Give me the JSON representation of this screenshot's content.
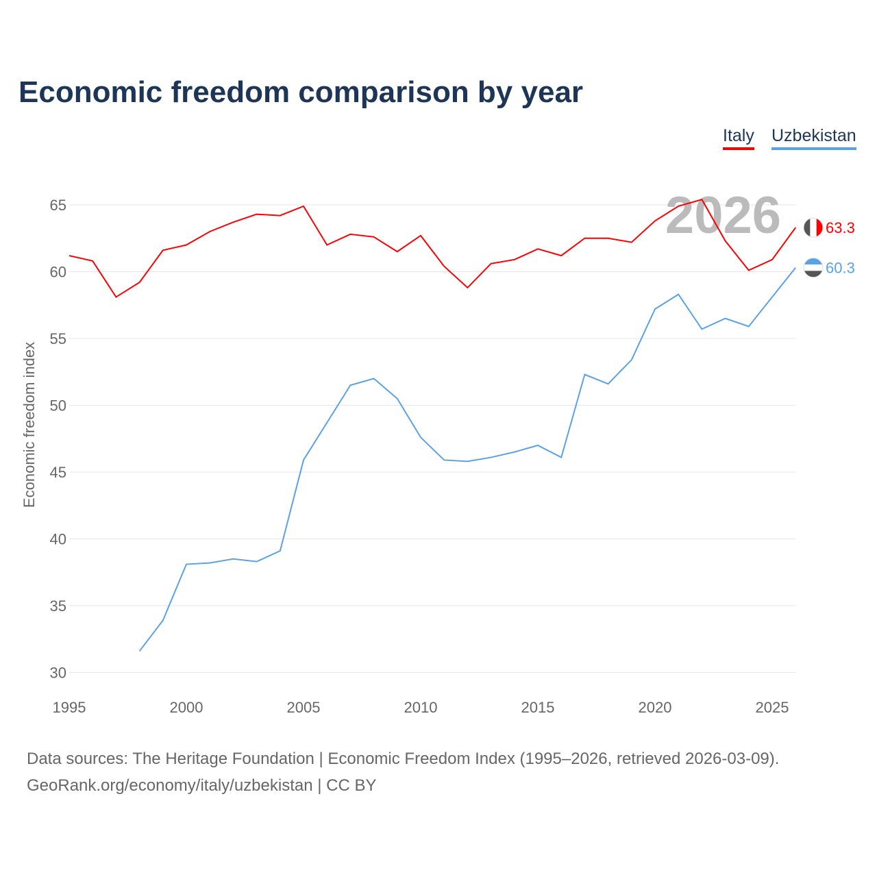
{
  "chart_data": {
    "type": "line",
    "title": "Economic freedom comparison by year",
    "xlabel": "",
    "ylabel": "Economic freedom index",
    "xlim": [
      1995,
      2026
    ],
    "ylim": [
      30,
      66
    ],
    "yticks": [
      30,
      35,
      40,
      45,
      50,
      55,
      60,
      65
    ],
    "xticks": [
      1995,
      2000,
      2005,
      2010,
      2015,
      2020,
      2025
    ],
    "grid": true,
    "legend_position": "top-right",
    "year_watermark": "2026",
    "series": [
      {
        "name": "Italy",
        "color": "#ff0000",
        "end_label": "63.3",
        "x": [
          1995,
          1996,
          1997,
          1998,
          1999,
          2000,
          2001,
          2002,
          2003,
          2004,
          2005,
          2006,
          2007,
          2008,
          2009,
          2010,
          2011,
          2012,
          2013,
          2014,
          2015,
          2016,
          2017,
          2018,
          2019,
          2020,
          2021,
          2022,
          2023,
          2024,
          2025,
          2026
        ],
        "values": [
          61.2,
          60.8,
          58.1,
          59.2,
          61.6,
          62.0,
          63.0,
          63.7,
          64.3,
          64.2,
          64.9,
          62.0,
          62.8,
          62.6,
          61.5,
          62.7,
          60.4,
          58.8,
          60.6,
          60.9,
          61.7,
          61.2,
          62.5,
          62.5,
          62.2,
          63.8,
          64.9,
          65.4,
          62.3,
          60.1,
          60.9,
          63.3
        ]
      },
      {
        "name": "Uzbekistan",
        "color": "#5aa2e8",
        "end_label": "60.3",
        "x": [
          1998,
          1999,
          2000,
          2001,
          2002,
          2003,
          2004,
          2005,
          2006,
          2007,
          2008,
          2009,
          2010,
          2011,
          2012,
          2013,
          2014,
          2015,
          2016,
          2017,
          2018,
          2019,
          2020,
          2021,
          2022,
          2023,
          2024,
          2025,
          2026
        ],
        "values": [
          31.6,
          33.9,
          38.1,
          38.2,
          38.5,
          38.3,
          39.1,
          45.9,
          48.7,
          51.5,
          52.0,
          50.5,
          47.6,
          45.9,
          45.8,
          46.1,
          46.5,
          47.0,
          46.1,
          52.3,
          51.6,
          53.4,
          57.2,
          58.3,
          55.7,
          56.5,
          55.9,
          58.1,
          60.3
        ]
      }
    ]
  },
  "footer": {
    "line1": "Data sources: The Heritage Foundation | Economic Freedom Index (1995–2026, retrieved 2026-03-09).",
    "line2": "GeoRank.org/economy/italy/uzbekistan | CC BY"
  }
}
